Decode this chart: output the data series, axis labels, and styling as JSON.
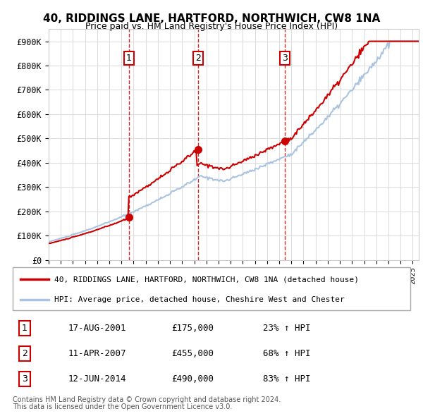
{
  "title": "40, RIDDINGS LANE, HARTFORD, NORTHWICH, CW8 1NA",
  "subtitle": "Price paid vs. HM Land Registry's House Price Index (HPI)",
  "sale_prices": [
    175000,
    455000,
    490000
  ],
  "sale_labels": [
    "1",
    "2",
    "3"
  ],
  "sale_info": [
    [
      "1",
      "17-AUG-2001",
      "£175,000",
      "23% ↑ HPI"
    ],
    [
      "2",
      "11-APR-2007",
      "£455,000",
      "68% ↑ HPI"
    ],
    [
      "3",
      "12-JUN-2014",
      "£490,000",
      "83% ↑ HPI"
    ]
  ],
  "legend_line1": "40, RIDDINGS LANE, HARTFORD, NORTHWICH, CW8 1NA (detached house)",
  "legend_line2": "HPI: Average price, detached house, Cheshire West and Chester",
  "footer1": "Contains HM Land Registry data © Crown copyright and database right 2024.",
  "footer2": "This data is licensed under the Open Government Licence v3.0.",
  "line_color_red": "#cc0000",
  "line_color_blue": "#aac4e0",
  "dashed_color": "#cc0000",
  "ylim": [
    0,
    950000
  ],
  "yticks": [
    0,
    100000,
    200000,
    300000,
    400000,
    500000,
    600000,
    700000,
    800000,
    900000
  ],
  "ytick_labels": [
    "£0",
    "£100K",
    "£200K",
    "£300K",
    "£400K",
    "£500K",
    "£600K",
    "£700K",
    "£800K",
    "£900K"
  ],
  "background_color": "#ffffff",
  "grid_color": "#dddddd"
}
